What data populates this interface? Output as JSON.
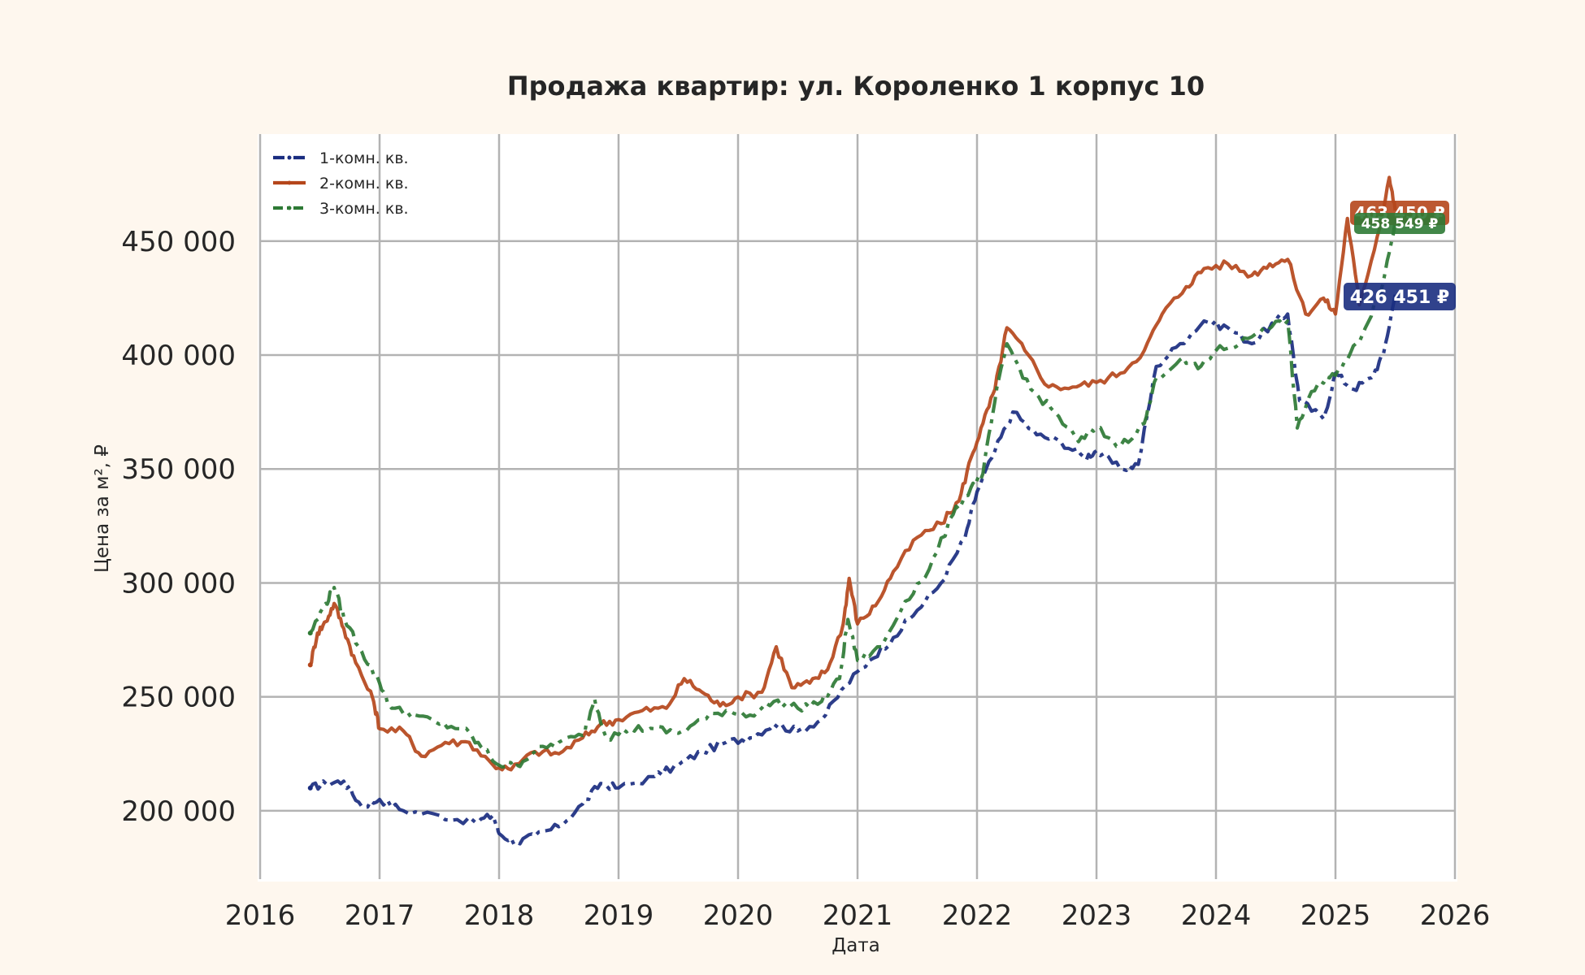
{
  "chart_data": {
    "type": "line",
    "title": "Продажа квартир: ул. Короленко 1 корпус 10",
    "xlabel": "Дата",
    "ylabel": "Цена за м², ₽",
    "xlim": [
      2016,
      2026
    ],
    "ylim": [
      170000,
      497000
    ],
    "x_ticks": [
      "2016",
      "2017",
      "2018",
      "2019",
      "2020",
      "2021",
      "2022",
      "2023",
      "2024",
      "2025",
      "2026"
    ],
    "y_ticks": [
      "200 000",
      "250 000",
      "300 000",
      "350 000",
      "400 000",
      "450 000"
    ],
    "y_tick_values": [
      200000,
      250000,
      300000,
      350000,
      400000,
      450000
    ],
    "grid": true,
    "legend_position": "top-left",
    "series": [
      {
        "name": "1-комн. кв.",
        "color": "#1a2d80",
        "style": "dash-dot",
        "last_label": "426 451 ₽",
        "points": [
          [
            2016.42,
            210000
          ],
          [
            2016.55,
            212000
          ],
          [
            2016.7,
            213000
          ],
          [
            2016.85,
            202000
          ],
          [
            2017.0,
            205000
          ],
          [
            2017.2,
            200000
          ],
          [
            2017.5,
            198000
          ],
          [
            2017.8,
            195000
          ],
          [
            2017.95,
            198000
          ],
          [
            2018.0,
            190000
          ],
          [
            2018.15,
            186000
          ],
          [
            2018.3,
            189000
          ],
          [
            2018.5,
            193000
          ],
          [
            2018.7,
            203000
          ],
          [
            2018.85,
            212000
          ],
          [
            2019.0,
            210000
          ],
          [
            2019.3,
            215000
          ],
          [
            2019.5,
            220000
          ],
          [
            2019.7,
            226000
          ],
          [
            2019.9,
            230000
          ],
          [
            2020.1,
            232000
          ],
          [
            2020.3,
            238000
          ],
          [
            2020.5,
            235000
          ],
          [
            2020.7,
            240000
          ],
          [
            2020.9,
            255000
          ],
          [
            2021.1,
            266000
          ],
          [
            2021.3,
            276000
          ],
          [
            2021.5,
            288000
          ],
          [
            2021.7,
            300000
          ],
          [
            2021.9,
            320000
          ],
          [
            2022.0,
            340000
          ],
          [
            2022.15,
            358000
          ],
          [
            2022.3,
            375000
          ],
          [
            2022.5,
            365000
          ],
          [
            2022.7,
            362000
          ],
          [
            2022.9,
            355000
          ],
          [
            2023.0,
            358000
          ],
          [
            2023.2,
            350000
          ],
          [
            2023.35,
            352000
          ],
          [
            2023.5,
            395000
          ],
          [
            2023.7,
            405000
          ],
          [
            2023.9,
            415000
          ],
          [
            2024.1,
            412000
          ],
          [
            2024.3,
            405000
          ],
          [
            2024.5,
            415000
          ],
          [
            2024.6,
            418000
          ],
          [
            2024.7,
            380000
          ],
          [
            2024.9,
            372000
          ],
          [
            2025.0,
            392000
          ],
          [
            2025.15,
            385000
          ],
          [
            2025.3,
            390000
          ],
          [
            2025.4,
            400000
          ],
          [
            2025.5,
            426451
          ]
        ]
      },
      {
        "name": "2-комн. кв.",
        "color": "#b5461b",
        "style": "solid",
        "last_label": "463 450 ₽",
        "points": [
          [
            2016.42,
            264000
          ],
          [
            2016.48,
            278000
          ],
          [
            2016.55,
            283000
          ],
          [
            2016.62,
            291000
          ],
          [
            2016.7,
            280000
          ],
          [
            2016.8,
            265000
          ],
          [
            2016.95,
            248000
          ],
          [
            2017.0,
            236000
          ],
          [
            2017.2,
            235000
          ],
          [
            2017.35,
            224000
          ],
          [
            2017.55,
            230000
          ],
          [
            2017.75,
            230000
          ],
          [
            2017.95,
            220000
          ],
          [
            2018.1,
            218000
          ],
          [
            2018.3,
            226000
          ],
          [
            2018.5,
            225000
          ],
          [
            2018.7,
            232000
          ],
          [
            2018.85,
            238000
          ],
          [
            2019.0,
            240000
          ],
          [
            2019.2,
            244000
          ],
          [
            2019.4,
            245000
          ],
          [
            2019.55,
            258000
          ],
          [
            2019.7,
            252000
          ],
          [
            2019.85,
            246000
          ],
          [
            2020.0,
            250000
          ],
          [
            2020.2,
            252000
          ],
          [
            2020.32,
            272000
          ],
          [
            2020.45,
            254000
          ],
          [
            2020.6,
            256000
          ],
          [
            2020.75,
            262000
          ],
          [
            2020.88,
            282000
          ],
          [
            2020.93,
            302000
          ],
          [
            2021.0,
            282000
          ],
          [
            2021.15,
            290000
          ],
          [
            2021.3,
            305000
          ],
          [
            2021.5,
            320000
          ],
          [
            2021.7,
            326000
          ],
          [
            2021.85,
            336000
          ],
          [
            2021.95,
            355000
          ],
          [
            2022.05,
            370000
          ],
          [
            2022.15,
            385000
          ],
          [
            2022.25,
            412000
          ],
          [
            2022.4,
            402000
          ],
          [
            2022.6,
            386000
          ],
          [
            2022.8,
            386000
          ],
          [
            2023.0,
            388000
          ],
          [
            2023.2,
            392000
          ],
          [
            2023.4,
            402000
          ],
          [
            2023.55,
            418000
          ],
          [
            2023.75,
            430000
          ],
          [
            2023.9,
            438000
          ],
          [
            2024.1,
            440000
          ],
          [
            2024.3,
            435000
          ],
          [
            2024.45,
            440000
          ],
          [
            2024.6,
            442000
          ],
          [
            2024.75,
            418000
          ],
          [
            2024.9,
            425000
          ],
          [
            2025.0,
            418000
          ],
          [
            2025.1,
            460000
          ],
          [
            2025.2,
            422000
          ],
          [
            2025.35,
            452000
          ],
          [
            2025.45,
            478000
          ],
          [
            2025.5,
            463450
          ]
        ]
      },
      {
        "name": "3-комн. кв.",
        "color": "#2e7a35",
        "style": "dashed",
        "last_label": "458 549 ₽",
        "points": [
          [
            2016.42,
            278000
          ],
          [
            2016.55,
            291000
          ],
          [
            2016.62,
            298000
          ],
          [
            2016.7,
            285000
          ],
          [
            2016.85,
            270000
          ],
          [
            2017.0,
            256000
          ],
          [
            2017.1,
            245000
          ],
          [
            2017.3,
            242000
          ],
          [
            2017.5,
            238000
          ],
          [
            2017.7,
            236000
          ],
          [
            2017.85,
            228000
          ],
          [
            2018.0,
            220000
          ],
          [
            2018.15,
            220000
          ],
          [
            2018.3,
            226000
          ],
          [
            2018.5,
            230000
          ],
          [
            2018.7,
            233000
          ],
          [
            2018.8,
            249000
          ],
          [
            2018.9,
            232000
          ],
          [
            2019.1,
            236000
          ],
          [
            2019.3,
            236000
          ],
          [
            2019.5,
            234000
          ],
          [
            2019.7,
            240000
          ],
          [
            2019.9,
            244000
          ],
          [
            2020.1,
            242000
          ],
          [
            2020.3,
            248000
          ],
          [
            2020.5,
            245000
          ],
          [
            2020.7,
            248000
          ],
          [
            2020.85,
            258000
          ],
          [
            2020.92,
            284000
          ],
          [
            2021.0,
            266000
          ],
          [
            2021.2,
            272000
          ],
          [
            2021.4,
            292000
          ],
          [
            2021.6,
            306000
          ],
          [
            2021.8,
            330000
          ],
          [
            2021.95,
            342000
          ],
          [
            2022.05,
            348000
          ],
          [
            2022.15,
            380000
          ],
          [
            2022.25,
            405000
          ],
          [
            2022.45,
            385000
          ],
          [
            2022.65,
            375000
          ],
          [
            2022.85,
            362000
          ],
          [
            2023.0,
            368000
          ],
          [
            2023.2,
            360000
          ],
          [
            2023.4,
            370000
          ],
          [
            2023.5,
            390000
          ],
          [
            2023.7,
            398000
          ],
          [
            2023.85,
            394000
          ],
          [
            2024.0,
            402000
          ],
          [
            2024.2,
            405000
          ],
          [
            2024.4,
            412000
          ],
          [
            2024.6,
            415000
          ],
          [
            2024.68,
            368000
          ],
          [
            2024.8,
            384000
          ],
          [
            2024.95,
            390000
          ],
          [
            2025.1,
            398000
          ],
          [
            2025.25,
            412000
          ],
          [
            2025.4,
            432000
          ],
          [
            2025.5,
            458549
          ]
        ]
      }
    ]
  }
}
